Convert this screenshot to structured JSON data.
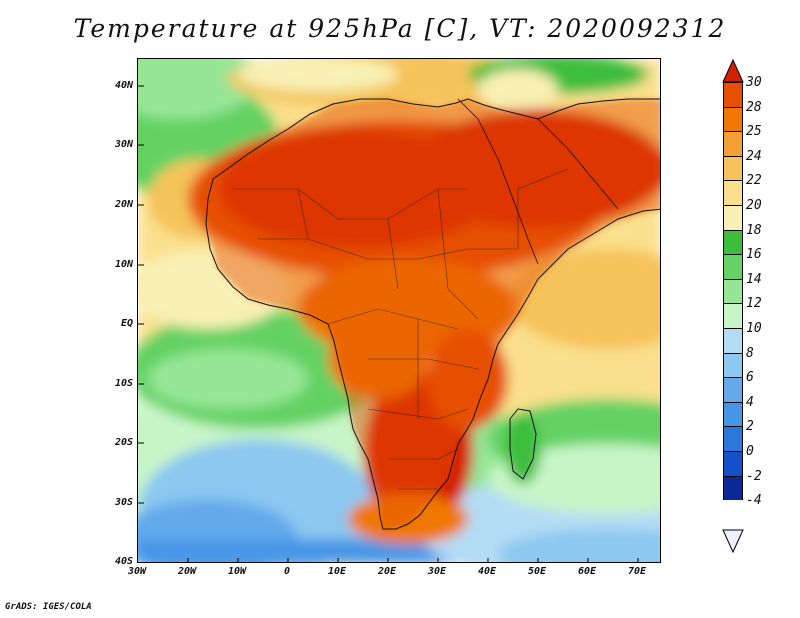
{
  "title": "Temperature at 925hPa [C], VT: 2020092312",
  "footer": "GrADS: IGES/COLA",
  "map": {
    "lat_labels": [
      "40N",
      "30N",
      "20N",
      "10N",
      "EQ",
      "10S",
      "20S",
      "30S",
      "40S"
    ],
    "lon_labels": [
      "30W",
      "20W",
      "10W",
      "0",
      "10E",
      "20E",
      "30E",
      "40E",
      "50E",
      "60E",
      "70E"
    ],
    "lat_range": [
      -40,
      45
    ],
    "lon_range": [
      -30,
      75
    ]
  },
  "colorbar": {
    "labels": [
      "30",
      "28",
      "25",
      "24",
      "22",
      "20",
      "18",
      "16",
      "14",
      "12",
      "10",
      "8",
      "6",
      "4",
      "2",
      "0",
      "-2",
      "-4"
    ],
    "colors": [
      "#d42000",
      "#e65000",
      "#f07800",
      "#f5a032",
      "#f5c35a",
      "#fae08c",
      "#f8f0b4",
      "#3cbe3c",
      "#64d264",
      "#96e696",
      "#c8f5c8",
      "#b4dcf5",
      "#8cc8f0",
      "#64aaeb",
      "#4696e6",
      "#2a78dc",
      "#1450c8",
      "#0a2896",
      "#000064"
    ]
  }
}
